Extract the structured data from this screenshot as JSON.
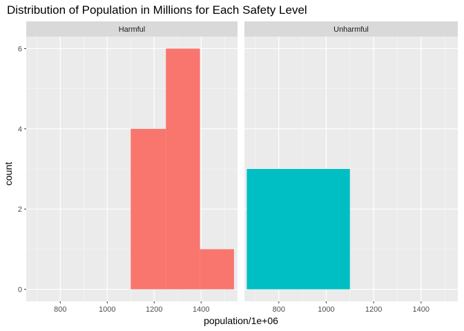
{
  "chart_data": {
    "type": "bar",
    "title": "Distribution of Population in Millions for Each Safety Level",
    "xlabel": "population/1e+06",
    "ylabel": "count",
    "xlim": [
      655,
      1555
    ],
    "ylim": [
      -0.3,
      6.3
    ],
    "x_ticks": [
      800,
      1000,
      1200,
      1400
    ],
    "y_ticks": [
      0,
      2,
      4,
      6
    ],
    "grid": true,
    "facets": [
      {
        "label": "Harmful",
        "color": "#F8766D",
        "bins": [
          {
            "x0": 1100,
            "x1": 1250,
            "count": 4
          },
          {
            "x0": 1250,
            "x1": 1395,
            "count": 6
          },
          {
            "x0": 1395,
            "x1": 1540,
            "count": 1
          }
        ]
      },
      {
        "label": "Unharmful",
        "color": "#00BFC4",
        "bins": [
          {
            "x0": 665,
            "x1": 1100,
            "count": 3
          }
        ]
      }
    ]
  }
}
